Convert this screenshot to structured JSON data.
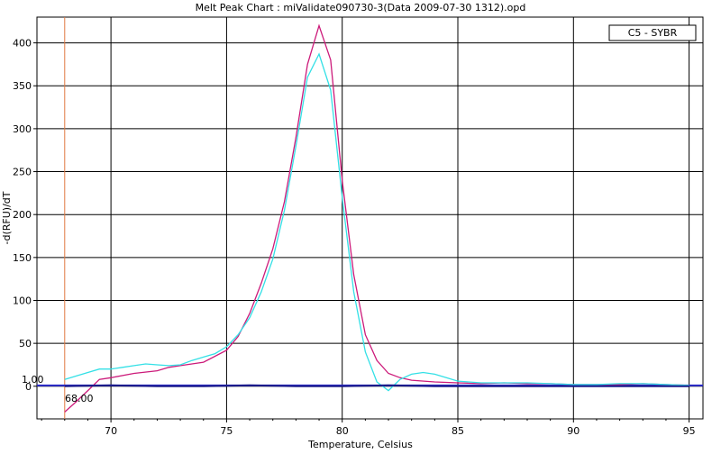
{
  "chart_data": {
    "type": "line",
    "title": "Melt Peak Chart : miValidate090730-3(Data 2009-07-30 1312).opd",
    "xlabel": "Temperature, Celsius",
    "ylabel": "-d(RFU)/dT",
    "xlim": [
      66.8,
      95.6
    ],
    "ylim": [
      -38,
      430
    ],
    "xticks": [
      70,
      75,
      80,
      85,
      90,
      95
    ],
    "yticks": [
      0,
      50,
      100,
      150,
      200,
      250,
      300,
      350,
      400
    ],
    "grid": true,
    "legend": {
      "position": "top-right",
      "label": "C5 - SYBR"
    },
    "threshold": {
      "value": 1.0,
      "label": "1.00",
      "color": "#2b2bcc"
    },
    "begin_marker": {
      "x": 68.0,
      "label": "68.00",
      "color": "#e07a40"
    },
    "series": [
      {
        "color": "#cc1a7a",
        "x": [
          68.0,
          68.5,
          69.0,
          69.5,
          70.0,
          71.0,
          72.0,
          72.5,
          73.0,
          74.0,
          75.0,
          75.5,
          76.0,
          76.5,
          77.0,
          77.5,
          78.0,
          78.5,
          79.0,
          79.5,
          80.0,
          80.5,
          81.0,
          81.5,
          82.0,
          82.5,
          83.0,
          84.0,
          85.0,
          86.0,
          87.0,
          88.0,
          89.0,
          90.0,
          91.0,
          92.0,
          93.0,
          94.0,
          95.0
        ],
        "y": [
          -30,
          -18,
          -5,
          8,
          10,
          15,
          18,
          22,
          24,
          28,
          42,
          58,
          85,
          120,
          160,
          215,
          290,
          375,
          420,
          380,
          240,
          130,
          60,
          30,
          15,
          10,
          7,
          5,
          4,
          3,
          4,
          3,
          3,
          2,
          2,
          2,
          3,
          2,
          1
        ]
      },
      {
        "color": "#33e0e6",
        "x": [
          68.0,
          68.5,
          69.0,
          69.5,
          70.0,
          70.5,
          71.0,
          71.5,
          72.0,
          72.5,
          73.0,
          73.5,
          74.0,
          74.5,
          75.0,
          75.5,
          76.0,
          76.5,
          77.0,
          77.5,
          78.0,
          78.5,
          79.0,
          79.5,
          80.0,
          80.5,
          81.0,
          81.5,
          82.0,
          82.5,
          83.0,
          83.5,
          84.0,
          84.5,
          85.0,
          86.0,
          87.0,
          88.0,
          89.0,
          90.0,
          91.0,
          92.0,
          93.0,
          94.0,
          95.0
        ],
        "y": [
          8,
          12,
          16,
          20,
          20,
          22,
          24,
          26,
          25,
          24,
          25,
          30,
          34,
          38,
          46,
          60,
          80,
          110,
          148,
          205,
          280,
          360,
          387,
          345,
          220,
          110,
          40,
          5,
          -5,
          8,
          14,
          16,
          14,
          10,
          6,
          4,
          4,
          4,
          3,
          2,
          2,
          3,
          3,
          2,
          1
        ]
      },
      {
        "color": "#1a1a88",
        "x": [
          68.0,
          70.0,
          72.0,
          74.0,
          76.0,
          78.0,
          80.0,
          82.0,
          84.0,
          86.0,
          88.0,
          90.0,
          92.0,
          94.0,
          95.0
        ],
        "y": [
          0,
          1,
          0,
          0,
          1,
          0,
          0,
          1,
          0,
          0,
          0,
          0,
          0,
          0,
          0
        ]
      }
    ]
  }
}
